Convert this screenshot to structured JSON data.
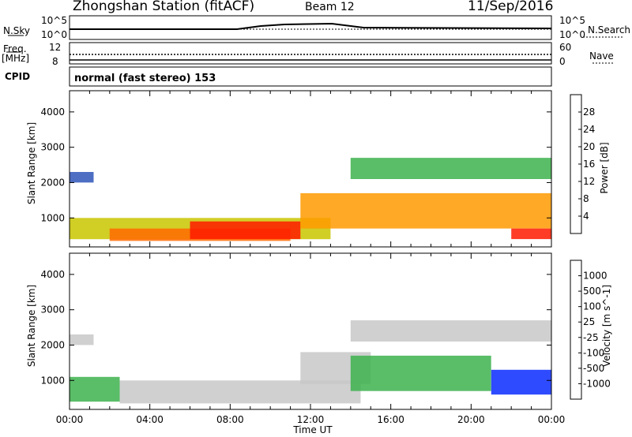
{
  "header": {
    "station": "Zhongshan Station (fitACF)",
    "beam": "Beam 12",
    "date": "11/Sep/2016",
    "cpid_text": "normal (fast stereo) 153"
  },
  "side_labels": {
    "nsky": "N.Sky",
    "freq": "Freq.",
    "freq_unit": "[MHz]",
    "cpid": "CPID",
    "nsearch": "N.Search",
    "nave": "Nave"
  },
  "small_axes": {
    "nsky_ticks": [
      "10^5",
      "10^0"
    ],
    "nsearch_ticks": [
      "10^5",
      "10^0"
    ],
    "freq_ticks": [
      "12",
      "8"
    ],
    "nave_ticks": [
      "60",
      "0"
    ]
  },
  "colors": {
    "power_scale": [
      "#0a2cff",
      "#2f55b8",
      "#3e8c60",
      "#3db24d",
      "#c9c600",
      "#ff9a00",
      "#ff6a00",
      "#ff1a00"
    ],
    "velocity_scale": [
      "#ff1a00",
      "#ff6a00",
      "#ffa030",
      "#c8c8c8",
      "#c8c8c8",
      "#3db24d",
      "#3e8c60",
      "#2f55b8",
      "#0a2cff"
    ]
  },
  "chart_data": [
    {
      "type": "heatmap",
      "name": "power",
      "ylabel": "Slant Range [km]",
      "xlabel": "",
      "colorbar_label": "Power [dB]",
      "colorbar_ticks": [
        "28",
        "24",
        "20",
        "16",
        "12",
        "8",
        "4"
      ],
      "ylim": [
        180,
        4600
      ],
      "y_ticks": [
        "4000",
        "3000",
        "2000",
        "1000"
      ],
      "x_ticks": [
        "00:00",
        "04:00",
        "08:00",
        "12:00",
        "16:00",
        "20:00",
        "00:00"
      ],
      "regions": [
        {
          "t_start": 0.0,
          "t_end": 1.2,
          "r_start": 2000,
          "r_end": 2300,
          "value_db": 6
        },
        {
          "t_start": 0.0,
          "t_end": 13.0,
          "r_start": 400,
          "r_end": 1000,
          "value_db": 18
        },
        {
          "t_start": 2.0,
          "t_end": 11.0,
          "r_start": 350,
          "r_end": 700,
          "value_db": 26
        },
        {
          "t_start": 6.0,
          "t_end": 11.5,
          "r_start": 400,
          "r_end": 900,
          "value_db": 30
        },
        {
          "t_start": 11.5,
          "t_end": 24.0,
          "r_start": 700,
          "r_end": 1700,
          "value_db": 20
        },
        {
          "t_start": 14.0,
          "t_end": 24.0,
          "r_start": 2100,
          "r_end": 2700,
          "value_db": 12
        },
        {
          "t_start": 22.0,
          "t_end": 24.0,
          "r_start": 400,
          "r_end": 700,
          "value_db": 28
        }
      ]
    },
    {
      "type": "heatmap",
      "name": "velocity",
      "ylabel": "Slant Range [km]",
      "xlabel": "Time UT",
      "colorbar_label": "Velocity [m s^-1]",
      "colorbar_ticks": [
        "1000",
        "500",
        "100",
        "25",
        "-25",
        "-100",
        "-500",
        "-1000"
      ],
      "ylim": [
        180,
        4600
      ],
      "y_ticks": [
        "4000",
        "3000",
        "2000",
        "1000"
      ],
      "x_ticks": [
        "00:00",
        "04:00",
        "08:00",
        "12:00",
        "16:00",
        "20:00",
        "00:00"
      ],
      "regions": [
        {
          "t_start": 0.0,
          "t_end": 1.2,
          "r_start": 2000,
          "r_end": 2300,
          "value_ms": 0
        },
        {
          "t_start": 0.0,
          "t_end": 2.5,
          "r_start": 400,
          "r_end": 1100,
          "value_ms": 200
        },
        {
          "t_start": 2.5,
          "t_end": 14.5,
          "r_start": 350,
          "r_end": 1000,
          "value_ms": -300
        },
        {
          "t_start": 11.5,
          "t_end": 15.0,
          "r_start": 900,
          "r_end": 1800,
          "value_ms": -300
        },
        {
          "t_start": 14.0,
          "t_end": 21.0,
          "r_start": 700,
          "r_end": 1700,
          "value_ms": 200
        },
        {
          "t_start": 14.0,
          "t_end": 24.0,
          "r_start": 2100,
          "r_end": 2700,
          "value_ms": 0
        },
        {
          "t_start": 21.0,
          "t_end": 24.0,
          "r_start": 600,
          "r_end": 1300,
          "value_ms": 800
        }
      ]
    }
  ]
}
